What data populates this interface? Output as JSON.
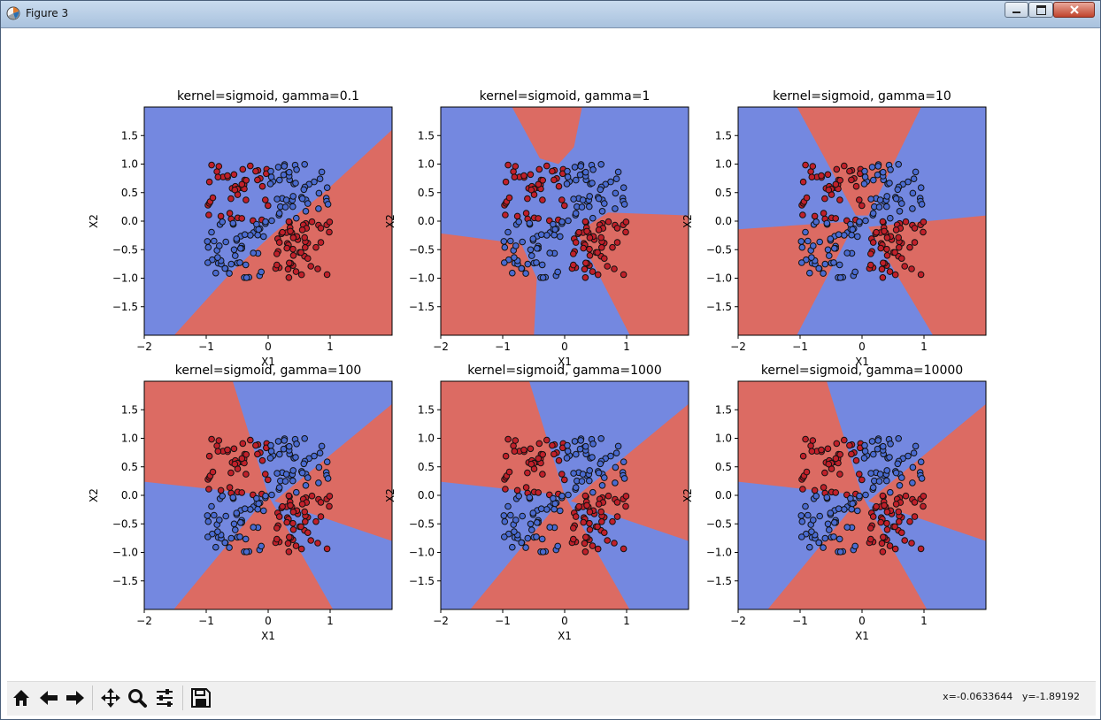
{
  "window": {
    "title": "Figure 3",
    "buttons": [
      "minimize",
      "maximize",
      "close"
    ]
  },
  "toolbar": {
    "buttons": [
      {
        "name": "home-icon"
      },
      {
        "name": "back-arrow-icon"
      },
      {
        "name": "forward-arrow-icon"
      },
      {
        "name": "pan-move-icon"
      },
      {
        "name": "zoom-magnifier-icon"
      },
      {
        "name": "configure-subplots-icon"
      },
      {
        "name": "save-floppy-icon"
      }
    ],
    "coords_x": "x=-0.0633644",
    "coords_y": "y=-1.89192"
  },
  "colors": {
    "class_red": "#dc6b63",
    "class_blue": "#7488e0",
    "point_red": "#c0202a",
    "point_blue": "#4a6bd0"
  },
  "chart_data": [
    {
      "type": "scatter",
      "title": "kernel=sigmoid, gamma=0.1",
      "xlabel": "X1",
      "ylabel": "X2",
      "xlim": [
        -2,
        2
      ],
      "ylim": [
        -2,
        2
      ],
      "xticks": [
        "−2",
        "−1",
        "0",
        "1"
      ],
      "yticks": [
        "1.5",
        "1.0",
        "0.5",
        "0.0",
        "−0.5",
        "−1.0",
        "−1.5"
      ]
    },
    {
      "type": "scatter",
      "title": "kernel=sigmoid, gamma=1",
      "xlabel": "X1",
      "ylabel": "X2",
      "xlim": [
        -2,
        2
      ],
      "ylim": [
        -2,
        2
      ],
      "xticks": [
        "−2",
        "−1",
        "0",
        "1"
      ],
      "yticks": [
        "1.5",
        "1.0",
        "0.5",
        "0.0",
        "−0.5",
        "−1.0",
        "−1.5"
      ]
    },
    {
      "type": "scatter",
      "title": "kernel=sigmoid, gamma=10",
      "xlabel": "X1",
      "ylabel": "X2",
      "xlim": [
        -2,
        2
      ],
      "ylim": [
        -2,
        2
      ],
      "xticks": [
        "−2",
        "−1",
        "0",
        "1"
      ],
      "yticks": [
        "1.5",
        "1.0",
        "0.5",
        "0.0",
        "−0.5",
        "−1.0",
        "−1.5"
      ]
    },
    {
      "type": "scatter",
      "title": "kernel=sigmoid, gamma=100",
      "xlabel": "X1",
      "ylabel": "X2",
      "xlim": [
        -2,
        2
      ],
      "ylim": [
        -2,
        2
      ],
      "xticks": [
        "−2",
        "−1",
        "0",
        "1"
      ],
      "yticks": [
        "1.5",
        "1.0",
        "0.5",
        "0.0",
        "−0.5",
        "−1.0",
        "−1.5"
      ]
    },
    {
      "type": "scatter",
      "title": "kernel=sigmoid, gamma=1000",
      "xlabel": "X1",
      "ylabel": "X2",
      "xlim": [
        -2,
        2
      ],
      "ylim": [
        -2,
        2
      ],
      "xticks": [
        "−2",
        "−1",
        "0",
        "1"
      ],
      "yticks": [
        "1.5",
        "1.0",
        "0.5",
        "0.0",
        "−0.5",
        "−1.0",
        "−1.5"
      ]
    },
    {
      "type": "scatter",
      "title": "kernel=sigmoid, gamma=10000",
      "xlabel": "X1",
      "ylabel": "X2",
      "xlim": [
        -2,
        2
      ],
      "ylim": [
        -2,
        2
      ],
      "xticks": [
        "−2",
        "−1",
        "0",
        "1"
      ],
      "yticks": [
        "1.5",
        "1.0",
        "0.5",
        "0.0",
        "−0.5",
        "−1.0",
        "−1.5"
      ]
    }
  ]
}
